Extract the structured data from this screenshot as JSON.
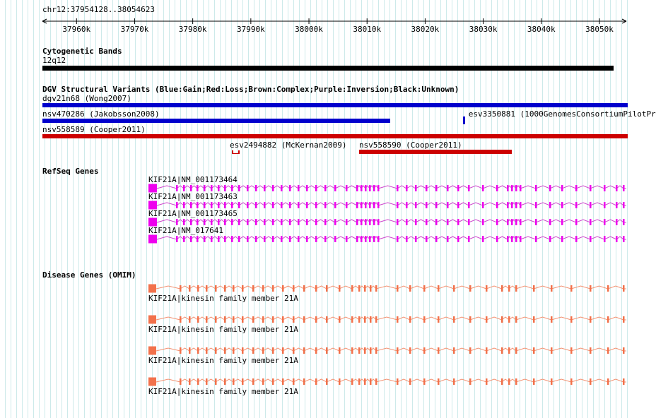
{
  "region": {
    "label": "chr12:37954128..38054623",
    "start": 37954128,
    "end": 38054623
  },
  "ruler": {
    "ticks": [
      {
        "bp": 37960000,
        "label": "37960k"
      },
      {
        "bp": 37970000,
        "label": "37970k"
      },
      {
        "bp": 37980000,
        "label": "37980k"
      },
      {
        "bp": 37990000,
        "label": "37990k"
      },
      {
        "bp": 38000000,
        "label": "38000k"
      },
      {
        "bp": 38010000,
        "label": "38010k"
      },
      {
        "bp": 38020000,
        "label": "38020k"
      },
      {
        "bp": 38030000,
        "label": "38030k"
      },
      {
        "bp": 38040000,
        "label": "38040k"
      },
      {
        "bp": 38050000,
        "label": "38050k"
      }
    ]
  },
  "cytobands": {
    "title": "Cytogenetic Bands",
    "band": "12q12",
    "color": "#000000"
  },
  "dgv": {
    "title": "DGV Structural Variants (Blue:Gain;Red:Loss;Brown:Complex;Purple:Inversion;Black:Unknown)",
    "colors": {
      "gain": "#0000cc",
      "loss": "#cc0000"
    },
    "rows": [
      {
        "items": [
          {
            "id": "dgv21n68",
            "label": "dgv21n68 (Wong2007)",
            "type": "gain",
            "start_pct": 0,
            "end_pct": 100,
            "label_pct": 0
          }
        ]
      },
      {
        "items": [
          {
            "id": "nsv470286",
            "label": "nsv470286 (Jakobsson2008)",
            "type": "gain",
            "start_pct": 0,
            "end_pct": 59.4,
            "label_pct": 0
          },
          {
            "id": "esv3350881",
            "label": "esv3350881 (1000GenomesConsortiumPilotPr",
            "type": "gain",
            "start_pct": 71.8,
            "end_pct": 72.2,
            "label_pct": 72.8,
            "tick": true
          }
        ]
      },
      {
        "items": [
          {
            "id": "nsv558589",
            "label": "nsv558589 (Cooper2011)",
            "type": "loss",
            "start_pct": 0,
            "end_pct": 100,
            "label_pct": 0
          }
        ]
      },
      {
        "items": [
          {
            "id": "esv2494882",
            "label": "esv2494882 (McKernan2009)",
            "type": "loss",
            "start_pct": 32.4,
            "end_pct": 33.7,
            "label_pct": 32.0,
            "bracket": true
          },
          {
            "id": "nsv558590",
            "label": "nsv558590 (Cooper2011)",
            "type": "loss",
            "start_pct": 54.1,
            "end_pct": 80.2,
            "label_pct": 54.1
          }
        ]
      }
    ]
  },
  "refseq": {
    "title": "RefSeq Genes",
    "exon_color": "#ee00ee",
    "line_color": "#cc44cc",
    "first_exon": {
      "x": 0,
      "w": 12
    },
    "exons": [
      40,
      50,
      60,
      69,
      79,
      89,
      99,
      108,
      118,
      128,
      140,
      152,
      164,
      176,
      188,
      200,
      212,
      224,
      237,
      250,
      264,
      280,
      295,
      301,
      307,
      313,
      319,
      325,
      352,
      365,
      378,
      393,
      407,
      423,
      438,
      453,
      473,
      493,
      508,
      514,
      520,
      526,
      548,
      568,
      585,
      605,
      625,
      645,
      662,
      672
    ],
    "genes": [
      {
        "label": "KIF21A|NM_001173464"
      },
      {
        "label": "KIF21A|NM_001173463"
      },
      {
        "label": "KIF21A|NM_001173465"
      },
      {
        "label": "KIF21A|NM_017641"
      }
    ]
  },
  "omim": {
    "title": "Disease Genes (OMIM)",
    "exon_color": "#f2714b",
    "line_color": "#f29070",
    "first_exon": {
      "x": 0,
      "w": 11
    },
    "exons": [
      45,
      58,
      70,
      82,
      95,
      108,
      120,
      133,
      148,
      162,
      176,
      190,
      205,
      220,
      237,
      252,
      270,
      288,
      298,
      306,
      314,
      322,
      352,
      370,
      390,
      410,
      432,
      455,
      478,
      500,
      510,
      520,
      545,
      570,
      598,
      625,
      650,
      672
    ],
    "genes": [
      {
        "label": "KIF21A|kinesin family member 21A"
      },
      {
        "label": "KIF21A|kinesin family member 21A"
      },
      {
        "label": "KIF21A|kinesin family member 21A"
      },
      {
        "label": "KIF21A|kinesin family member 21A"
      }
    ]
  }
}
